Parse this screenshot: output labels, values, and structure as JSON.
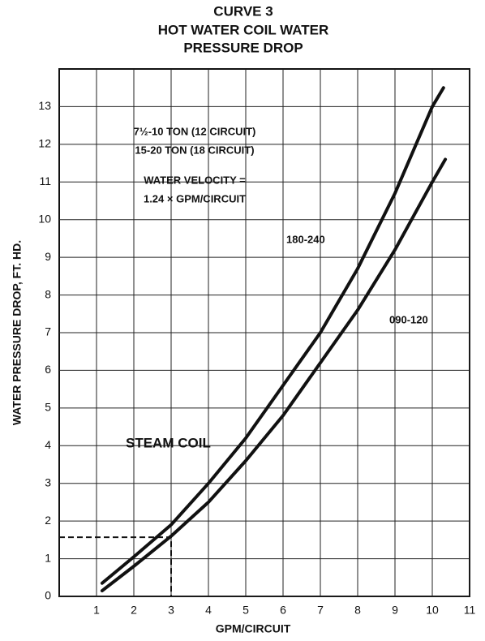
{
  "chart_data": {
    "type": "line",
    "title": [
      "CURVE 3",
      "HOT WATER COIL WATER",
      "PRESSURE DROP"
    ],
    "x_label": "GPM/CIRCUIT",
    "y_label": "WATER PRESSURE DROP, FT. HD.",
    "annotations": [
      "7½-10 TON (12 CIRCUIT)",
      "15-20 TON (18 CIRCUIT)",
      "WATER VELOCITY =",
      "1.24 × GPM/CIRCUIT",
      "STEAM COIL"
    ],
    "series": [
      {
        "name": "180-240",
        "color": "#111111",
        "x": [
          1.15,
          2,
          3,
          4,
          5,
          6,
          7,
          8,
          9,
          10,
          10.3
        ],
        "values": [
          0.35,
          1.05,
          1.9,
          3.0,
          4.2,
          5.6,
          7.0,
          8.7,
          10.7,
          13.0,
          13.5
        ]
      },
      {
        "name": "090-120",
        "color": "#111111",
        "x": [
          1.15,
          2,
          3,
          4,
          5,
          6,
          7,
          8,
          9,
          10,
          10.35
        ],
        "values": [
          0.15,
          0.8,
          1.6,
          2.5,
          3.6,
          4.8,
          6.2,
          7.6,
          9.2,
          11.0,
          11.6
        ]
      }
    ],
    "reference_point": {
      "x": 3,
      "y": 1.57
    },
    "xlim": [
      0,
      11
    ],
    "ylim": [
      0,
      14
    ],
    "xticks": [
      1,
      2,
      3,
      4,
      5,
      6,
      7,
      8,
      9,
      10,
      11
    ],
    "yticks": [
      0,
      1,
      2,
      3,
      4,
      5,
      6,
      7,
      8,
      9,
      10,
      11,
      12,
      13
    ],
    "grid": true
  }
}
